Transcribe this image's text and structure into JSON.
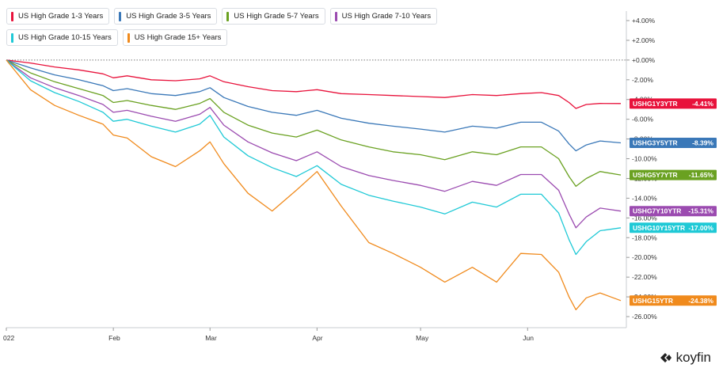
{
  "chart_data": {
    "type": "line",
    "title": "",
    "xlabel": "",
    "ylabel": "",
    "ylim": [
      -27,
      5
    ],
    "y_ticks": [
      4,
      2,
      0,
      -2,
      -4,
      -6,
      -8,
      -10,
      -12,
      -14,
      -16,
      -18,
      -20,
      -22,
      -24,
      -26
    ],
    "y_tick_labels": [
      "+4.00%",
      "+2.00%",
      "+0.00%",
      "-2.00%",
      "-4.00%",
      "-6.00%",
      "-8.00%",
      "-10.00%",
      "-12.00%",
      "-14.00%",
      "-16.00%",
      "-18.00%",
      "-20.00%",
      "-22.00%",
      "-24.00%",
      "-26.00%"
    ],
    "x_ticks": [
      {
        "label": "022",
        "day": 0
      },
      {
        "label": "Feb",
        "day": 31
      },
      {
        "label": "Mar",
        "day": 59
      },
      {
        "label": "Apr",
        "day": 90
      },
      {
        "label": "May",
        "day": 120
      },
      {
        "label": "Jun",
        "day": 151
      }
    ],
    "x_max_day": 178,
    "zero_line": 0,
    "series": [
      {
        "name": "US High Grade 1-3 Years",
        "ticker": "USHG1Y3YTR",
        "last_label": "-4.41%",
        "last": -4.41,
        "color": "#e8123b",
        "points": [
          [
            0,
            0
          ],
          [
            7,
            -0.3
          ],
          [
            14,
            -0.7
          ],
          [
            21,
            -1.0
          ],
          [
            28,
            -1.4
          ],
          [
            31,
            -1.8
          ],
          [
            35,
            -1.6
          ],
          [
            42,
            -2.0
          ],
          [
            49,
            -2.1
          ],
          [
            56,
            -1.9
          ],
          [
            59,
            -1.6
          ],
          [
            63,
            -2.2
          ],
          [
            70,
            -2.7
          ],
          [
            77,
            -3.1
          ],
          [
            84,
            -3.2
          ],
          [
            90,
            -3.0
          ],
          [
            97,
            -3.4
          ],
          [
            105,
            -3.5
          ],
          [
            112,
            -3.6
          ],
          [
            120,
            -3.7
          ],
          [
            127,
            -3.8
          ],
          [
            135,
            -3.5
          ],
          [
            142,
            -3.6
          ],
          [
            149,
            -3.4
          ],
          [
            155,
            -3.3
          ],
          [
            160,
            -3.6
          ],
          [
            163,
            -4.3
          ],
          [
            165,
            -4.9
          ],
          [
            168,
            -4.5
          ],
          [
            172,
            -4.4
          ],
          [
            178,
            -4.41
          ]
        ]
      },
      {
        "name": "US High Grade 3-5 Years",
        "ticker": "USHG3Y5YTR",
        "last_label": "-8.39%",
        "last": -8.39,
        "color": "#3a78b8",
        "points": [
          [
            0,
            0
          ],
          [
            7,
            -0.8
          ],
          [
            14,
            -1.5
          ],
          [
            21,
            -2.0
          ],
          [
            28,
            -2.6
          ],
          [
            31,
            -3.1
          ],
          [
            35,
            -2.9
          ],
          [
            42,
            -3.4
          ],
          [
            49,
            -3.6
          ],
          [
            56,
            -3.2
          ],
          [
            59,
            -2.8
          ],
          [
            63,
            -3.8
          ],
          [
            70,
            -4.7
          ],
          [
            77,
            -5.3
          ],
          [
            84,
            -5.6
          ],
          [
            90,
            -5.1
          ],
          [
            97,
            -5.9
          ],
          [
            105,
            -6.4
          ],
          [
            112,
            -6.7
          ],
          [
            120,
            -7.0
          ],
          [
            127,
            -7.3
          ],
          [
            135,
            -6.7
          ],
          [
            142,
            -6.9
          ],
          [
            149,
            -6.3
          ],
          [
            155,
            -6.3
          ],
          [
            160,
            -7.2
          ],
          [
            163,
            -8.5
          ],
          [
            165,
            -9.2
          ],
          [
            168,
            -8.6
          ],
          [
            172,
            -8.2
          ],
          [
            178,
            -8.39
          ]
        ]
      },
      {
        "name": "US High Grade 5-7 Years",
        "ticker": "USHG5Y7YTR",
        "last_label": "-11.65%",
        "last": -11.65,
        "color": "#6aa121",
        "points": [
          [
            0,
            0
          ],
          [
            7,
            -1.3
          ],
          [
            14,
            -2.2
          ],
          [
            21,
            -2.9
          ],
          [
            28,
            -3.6
          ],
          [
            31,
            -4.3
          ],
          [
            35,
            -4.1
          ],
          [
            42,
            -4.6
          ],
          [
            49,
            -5.0
          ],
          [
            56,
            -4.4
          ],
          [
            59,
            -3.9
          ],
          [
            63,
            -5.3
          ],
          [
            70,
            -6.6
          ],
          [
            77,
            -7.4
          ],
          [
            84,
            -7.8
          ],
          [
            90,
            -7.1
          ],
          [
            97,
            -8.1
          ],
          [
            105,
            -8.8
          ],
          [
            112,
            -9.3
          ],
          [
            120,
            -9.6
          ],
          [
            127,
            -10.1
          ],
          [
            135,
            -9.3
          ],
          [
            142,
            -9.6
          ],
          [
            149,
            -8.8
          ],
          [
            155,
            -8.8
          ],
          [
            160,
            -10.0
          ],
          [
            163,
            -11.8
          ],
          [
            165,
            -12.8
          ],
          [
            168,
            -12.0
          ],
          [
            172,
            -11.3
          ],
          [
            178,
            -11.65
          ]
        ]
      },
      {
        "name": "US High Grade 7-10 Years",
        "ticker": "USHG7Y10YTR",
        "last_label": "-15.31%",
        "last": -15.31,
        "color": "#9b4bb0",
        "points": [
          [
            0,
            0
          ],
          [
            7,
            -1.8
          ],
          [
            14,
            -2.8
          ],
          [
            21,
            -3.6
          ],
          [
            28,
            -4.5
          ],
          [
            31,
            -5.3
          ],
          [
            35,
            -5.1
          ],
          [
            42,
            -5.7
          ],
          [
            49,
            -6.2
          ],
          [
            56,
            -5.5
          ],
          [
            59,
            -4.8
          ],
          [
            63,
            -6.6
          ],
          [
            70,
            -8.3
          ],
          [
            77,
            -9.4
          ],
          [
            84,
            -10.2
          ],
          [
            90,
            -9.3
          ],
          [
            97,
            -10.8
          ],
          [
            105,
            -11.7
          ],
          [
            112,
            -12.2
          ],
          [
            120,
            -12.7
          ],
          [
            127,
            -13.3
          ],
          [
            135,
            -12.3
          ],
          [
            142,
            -12.7
          ],
          [
            149,
            -11.6
          ],
          [
            155,
            -11.6
          ],
          [
            160,
            -13.2
          ],
          [
            163,
            -15.6
          ],
          [
            165,
            -17.0
          ],
          [
            168,
            -15.9
          ],
          [
            172,
            -15.0
          ],
          [
            178,
            -15.31
          ]
        ]
      },
      {
        "name": "US High Grade 10-15 Years",
        "ticker": "USHG10Y15YTR",
        "last_label": "-17.00%",
        "last": -17.0,
        "color": "#1fc9d6",
        "points": [
          [
            0,
            0
          ],
          [
            7,
            -2.1
          ],
          [
            14,
            -3.3
          ],
          [
            21,
            -4.2
          ],
          [
            28,
            -5.3
          ],
          [
            31,
            -6.2
          ],
          [
            35,
            -6.0
          ],
          [
            42,
            -6.7
          ],
          [
            49,
            -7.3
          ],
          [
            56,
            -6.5
          ],
          [
            59,
            -5.6
          ],
          [
            63,
            -7.8
          ],
          [
            70,
            -9.7
          ],
          [
            77,
            -10.9
          ],
          [
            84,
            -11.8
          ],
          [
            90,
            -10.7
          ],
          [
            97,
            -12.6
          ],
          [
            105,
            -13.7
          ],
          [
            112,
            -14.3
          ],
          [
            120,
            -14.9
          ],
          [
            127,
            -15.6
          ],
          [
            135,
            -14.4
          ],
          [
            142,
            -14.9
          ],
          [
            149,
            -13.6
          ],
          [
            155,
            -13.6
          ],
          [
            160,
            -15.5
          ],
          [
            163,
            -18.2
          ],
          [
            165,
            -19.7
          ],
          [
            168,
            -18.4
          ],
          [
            172,
            -17.3
          ],
          [
            178,
            -17.0
          ]
        ]
      },
      {
        "name": "US High Grade 15+ Years",
        "ticker": "USHG15YTR",
        "last_label": "-24.38%",
        "last": -24.38,
        "color": "#f08a1c",
        "points": [
          [
            0,
            0
          ],
          [
            7,
            -3.0
          ],
          [
            14,
            -4.6
          ],
          [
            21,
            -5.6
          ],
          [
            28,
            -6.5
          ],
          [
            31,
            -7.6
          ],
          [
            35,
            -7.9
          ],
          [
            42,
            -9.8
          ],
          [
            49,
            -10.8
          ],
          [
            56,
            -9.2
          ],
          [
            59,
            -8.3
          ],
          [
            63,
            -10.5
          ],
          [
            70,
            -13.5
          ],
          [
            77,
            -15.3
          ],
          [
            84,
            -13.2
          ],
          [
            90,
            -11.3
          ],
          [
            97,
            -14.8
          ],
          [
            105,
            -18.5
          ],
          [
            112,
            -19.6
          ],
          [
            120,
            -21.0
          ],
          [
            127,
            -22.5
          ],
          [
            135,
            -21.0
          ],
          [
            142,
            -22.5
          ],
          [
            149,
            -19.6
          ],
          [
            155,
            -19.7
          ],
          [
            160,
            -21.5
          ],
          [
            163,
            -24.0
          ],
          [
            165,
            -25.3
          ],
          [
            168,
            -24.1
          ],
          [
            172,
            -23.6
          ],
          [
            178,
            -24.38
          ]
        ]
      }
    ]
  },
  "brand": {
    "name": "koyfin"
  }
}
